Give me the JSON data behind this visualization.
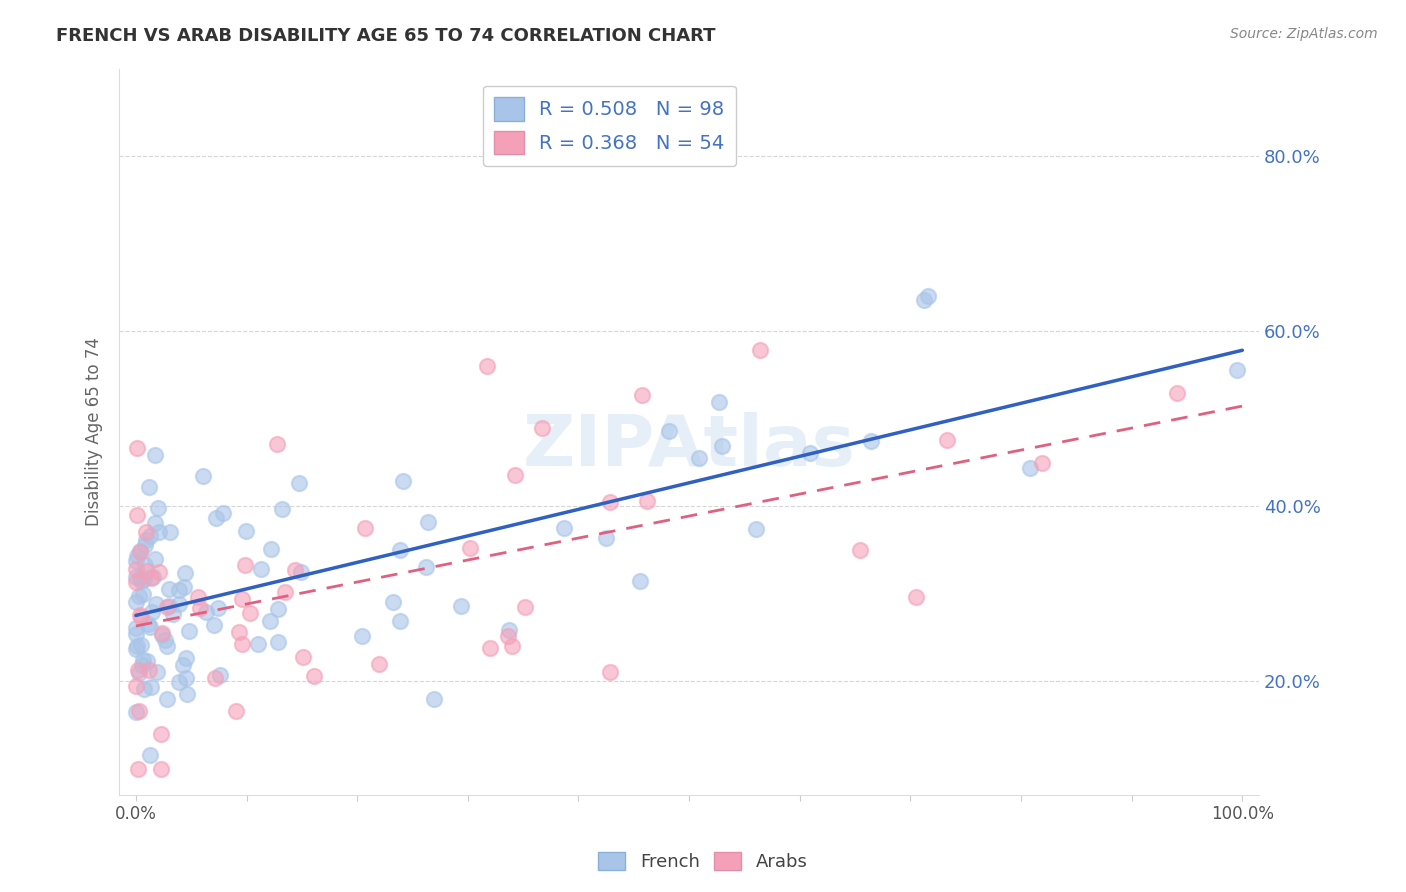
{
  "title": "FRENCH VS ARAB DISABILITY AGE 65 TO 74 CORRELATION CHART",
  "source": "Source: ZipAtlas.com",
  "ylabel": "Disability Age 65 to 74",
  "french_color": "#a8c4e8",
  "arab_color": "#f4a0b8",
  "french_line_color": "#3060c0",
  "arab_line_color": "#e06080",
  "french_R": 0.508,
  "french_N": 98,
  "arab_R": 0.368,
  "arab_N": 54,
  "legend_text_color": "#4472c4",
  "watermark": "ZIPAtlas",
  "background_color": "#ffffff",
  "grid_color": "#cccccc",
  "ytick_color": "#4472c4",
  "title_color": "#333333",
  "source_color": "#888888"
}
